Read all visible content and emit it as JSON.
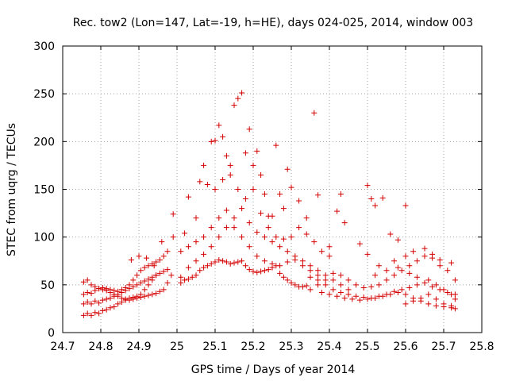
{
  "chart_data": {
    "type": "scatter",
    "title": "Rec. tow2 (Lon=147, Lat=-19, h=HE), days 024-025, 2014, window 003",
    "xlabel": "GPS time / Days of year 2014",
    "ylabel": "STEC from uqrg / TECUs",
    "xlim": [
      24.7,
      25.8
    ],
    "ylim": [
      0,
      300
    ],
    "x_ticks": [
      "24.7",
      "24.8",
      "24.9",
      "25",
      "25.1",
      "25.2",
      "25.3",
      "25.4",
      "25.5",
      "25.6",
      "25.7",
      "25.8"
    ],
    "y_ticks": [
      "0",
      "50",
      "100",
      "150",
      "200",
      "250",
      "300"
    ],
    "grid": true,
    "legend": "none",
    "marker": "plus",
    "color": "#d40000",
    "series": [
      {
        "values": [
          [
            24.755,
            18
          ],
          [
            24.765,
            20
          ],
          [
            24.775,
            18
          ],
          [
            24.785,
            21
          ],
          [
            24.795,
            20
          ],
          [
            24.805,
            23
          ],
          [
            24.815,
            24
          ],
          [
            24.825,
            26
          ],
          [
            24.835,
            27
          ],
          [
            24.845,
            30
          ],
          [
            24.855,
            32
          ],
          [
            24.865,
            34
          ],
          [
            24.875,
            36
          ],
          [
            24.885,
            37
          ],
          [
            24.895,
            38
          ],
          [
            24.905,
            37
          ],
          [
            24.915,
            38
          ],
          [
            24.925,
            39
          ],
          [
            24.935,
            40
          ],
          [
            24.945,
            41
          ],
          [
            24.955,
            43
          ],
          [
            24.965,
            45
          ],
          [
            24.975,
            52
          ],
          [
            24.985,
            60
          ],
          [
            24.755,
            30
          ],
          [
            24.765,
            32
          ],
          [
            24.775,
            30
          ],
          [
            24.785,
            33
          ],
          [
            24.795,
            31
          ],
          [
            24.805,
            34
          ],
          [
            24.815,
            35
          ],
          [
            24.825,
            36
          ],
          [
            24.835,
            38
          ],
          [
            24.845,
            40
          ],
          [
            24.855,
            42
          ],
          [
            24.865,
            44
          ],
          [
            24.875,
            46
          ],
          [
            24.885,
            48
          ],
          [
            24.895,
            50
          ],
          [
            24.905,
            52
          ],
          [
            24.915,
            54
          ],
          [
            24.925,
            56
          ],
          [
            24.935,
            58
          ],
          [
            24.945,
            60
          ],
          [
            24.955,
            62
          ],
          [
            24.965,
            64
          ],
          [
            24.975,
            66
          ],
          [
            24.755,
            40
          ],
          [
            24.765,
            42
          ],
          [
            24.775,
            41
          ],
          [
            24.785,
            44
          ],
          [
            24.795,
            46
          ],
          [
            24.805,
            47
          ],
          [
            24.815,
            46
          ],
          [
            24.825,
            45
          ],
          [
            24.835,
            44
          ],
          [
            24.845,
            43
          ],
          [
            24.855,
            45
          ],
          [
            24.865,
            47
          ],
          [
            24.875,
            50
          ],
          [
            24.885,
            55
          ],
          [
            24.895,
            60
          ],
          [
            24.905,
            65
          ],
          [
            24.915,
            68
          ],
          [
            24.925,
            70
          ],
          [
            24.935,
            72
          ],
          [
            24.945,
            74
          ],
          [
            24.955,
            76
          ],
          [
            24.965,
            80
          ],
          [
            24.975,
            85
          ],
          [
            24.755,
            53
          ],
          [
            24.765,
            55
          ],
          [
            24.775,
            50
          ],
          [
            24.785,
            48
          ],
          [
            24.795,
            46
          ],
          [
            24.805,
            45
          ],
          [
            24.815,
            44
          ],
          [
            24.825,
            42
          ],
          [
            24.835,
            40
          ],
          [
            24.845,
            38
          ],
          [
            24.855,
            36
          ],
          [
            24.865,
            35
          ],
          [
            24.875,
            34
          ],
          [
            24.885,
            35
          ],
          [
            24.895,
            36
          ],
          [
            24.905,
            40
          ],
          [
            24.915,
            45
          ],
          [
            24.925,
            50
          ],
          [
            24.935,
            55
          ],
          [
            24.945,
            60
          ],
          [
            24.88,
            76
          ],
          [
            24.9,
            80
          ],
          [
            24.92,
            78
          ],
          [
            24.94,
            70
          ],
          [
            24.96,
            95
          ],
          [
            24.99,
            124
          ],
          [
            24.99,
            100
          ],
          [
            25.01,
            52
          ],
          [
            25.02,
            55
          ],
          [
            25.03,
            56
          ],
          [
            25.04,
            58
          ],
          [
            25.05,
            60
          ],
          [
            25.06,
            65
          ],
          [
            25.07,
            68
          ],
          [
            25.08,
            70
          ],
          [
            25.09,
            72
          ],
          [
            25.1,
            74
          ],
          [
            25.11,
            76
          ],
          [
            25.12,
            75
          ],
          [
            25.13,
            74
          ],
          [
            25.14,
            72
          ],
          [
            25.15,
            73
          ],
          [
            25.16,
            74
          ],
          [
            25.17,
            75
          ],
          [
            25.18,
            70
          ],
          [
            25.19,
            66
          ],
          [
            25.2,
            64
          ],
          [
            25.21,
            63
          ],
          [
            25.22,
            64
          ],
          [
            25.23,
            65
          ],
          [
            25.24,
            66
          ],
          [
            25.25,
            68
          ],
          [
            25.26,
            70
          ],
          [
            25.27,
            62
          ],
          [
            25.28,
            58
          ],
          [
            25.29,
            55
          ],
          [
            25.3,
            52
          ],
          [
            25.31,
            50
          ],
          [
            25.32,
            48
          ],
          [
            25.33,
            48
          ],
          [
            25.34,
            49
          ],
          [
            25.01,
            58
          ],
          [
            25.03,
            68
          ],
          [
            25.05,
            75
          ],
          [
            25.07,
            82
          ],
          [
            25.09,
            90
          ],
          [
            25.11,
            100
          ],
          [
            25.13,
            110
          ],
          [
            25.15,
            120
          ],
          [
            25.17,
            130
          ],
          [
            25.19,
            115
          ],
          [
            25.21,
            105
          ],
          [
            25.23,
            100
          ],
          [
            25.25,
            95
          ],
          [
            25.27,
            90
          ],
          [
            25.29,
            85
          ],
          [
            25.31,
            80
          ],
          [
            25.33,
            75
          ],
          [
            25.35,
            70
          ],
          [
            25.37,
            65
          ],
          [
            25.39,
            60
          ],
          [
            25.41,
            55
          ],
          [
            25.43,
            50
          ],
          [
            25.45,
            45
          ],
          [
            25.02,
            104
          ],
          [
            25.03,
            142
          ],
          [
            25.05,
            120
          ],
          [
            25.06,
            158
          ],
          [
            25.07,
            175
          ],
          [
            25.08,
            155
          ],
          [
            25.09,
            200
          ],
          [
            25.1,
            201
          ],
          [
            25.11,
            217
          ],
          [
            25.12,
            205
          ],
          [
            25.13,
            185
          ],
          [
            25.14,
            165
          ],
          [
            25.15,
            238
          ],
          [
            25.16,
            245
          ],
          [
            25.17,
            251
          ],
          [
            25.18,
            188
          ],
          [
            25.19,
            213
          ],
          [
            25.2,
            175
          ],
          [
            25.21,
            190
          ],
          [
            25.22,
            165
          ],
          [
            25.23,
            145
          ],
          [
            25.24,
            122
          ],
          [
            25.25,
            122
          ],
          [
            25.26,
            196
          ],
          [
            25.27,
            145
          ],
          [
            25.28,
            130
          ],
          [
            25.29,
            171
          ],
          [
            25.3,
            152
          ],
          [
            25.32,
            138
          ],
          [
            25.34,
            120
          ],
          [
            25.36,
            230
          ],
          [
            25.37,
            144
          ],
          [
            25.4,
            90
          ],
          [
            25.42,
            127
          ],
          [
            25.43,
            145
          ],
          [
            25.44,
            115
          ],
          [
            25.1,
            150
          ],
          [
            25.12,
            160
          ],
          [
            25.14,
            175
          ],
          [
            25.16,
            150
          ],
          [
            25.18,
            140
          ],
          [
            25.2,
            150
          ],
          [
            25.22,
            125
          ],
          [
            25.24,
            110
          ],
          [
            25.26,
            100
          ],
          [
            25.28,
            98
          ],
          [
            25.3,
            100
          ],
          [
            25.32,
            110
          ],
          [
            25.34,
            103
          ],
          [
            25.36,
            95
          ],
          [
            25.38,
            85
          ],
          [
            25.4,
            80
          ],
          [
            25.01,
            85
          ],
          [
            25.03,
            90
          ],
          [
            25.05,
            95
          ],
          [
            25.07,
            100
          ],
          [
            25.09,
            110
          ],
          [
            25.11,
            120
          ],
          [
            25.13,
            128
          ],
          [
            25.15,
            110
          ],
          [
            25.17,
            100
          ],
          [
            25.19,
            90
          ],
          [
            25.21,
            80
          ],
          [
            25.23,
            75
          ],
          [
            25.25,
            72
          ],
          [
            25.27,
            70
          ],
          [
            25.29,
            74
          ],
          [
            25.31,
            76
          ],
          [
            25.33,
            70
          ],
          [
            25.35,
            65
          ],
          [
            25.37,
            60
          ],
          [
            25.35,
            45
          ],
          [
            25.37,
            50
          ],
          [
            25.39,
            55
          ],
          [
            25.41,
            62
          ],
          [
            25.43,
            60
          ],
          [
            25.45,
            55
          ],
          [
            25.47,
            50
          ],
          [
            25.49,
            47
          ],
          [
            25.51,
            48
          ],
          [
            25.53,
            50
          ],
          [
            25.55,
            55
          ],
          [
            25.57,
            60
          ],
          [
            25.59,
            65
          ],
          [
            25.61,
            70
          ],
          [
            25.63,
            75
          ],
          [
            25.65,
            80
          ],
          [
            25.67,
            78
          ],
          [
            25.69,
            70
          ],
          [
            25.71,
            65
          ],
          [
            25.73,
            55
          ],
          [
            25.35,
            58
          ],
          [
            25.37,
            55
          ],
          [
            25.39,
            50
          ],
          [
            25.41,
            45
          ],
          [
            25.43,
            42
          ],
          [
            25.45,
            40
          ],
          [
            25.47,
            38
          ],
          [
            25.49,
            37
          ],
          [
            25.51,
            36
          ],
          [
            25.53,
            38
          ],
          [
            25.55,
            40
          ],
          [
            25.57,
            43
          ],
          [
            25.59,
            45
          ],
          [
            25.61,
            47
          ],
          [
            25.63,
            50
          ],
          [
            25.65,
            52
          ],
          [
            25.67,
            48
          ],
          [
            25.69,
            45
          ],
          [
            25.71,
            42
          ],
          [
            25.73,
            40
          ],
          [
            25.38,
            42
          ],
          [
            25.4,
            40
          ],
          [
            25.42,
            38
          ],
          [
            25.44,
            36
          ],
          [
            25.46,
            35
          ],
          [
            25.48,
            34
          ],
          [
            25.5,
            35
          ],
          [
            25.52,
            36
          ],
          [
            25.54,
            38
          ],
          [
            25.56,
            40
          ],
          [
            25.58,
            42
          ],
          [
            25.6,
            40
          ],
          [
            25.62,
            36
          ],
          [
            25.64,
            33
          ],
          [
            25.66,
            30
          ],
          [
            25.68,
            28
          ],
          [
            25.7,
            27
          ],
          [
            25.72,
            26
          ],
          [
            25.73,
            25
          ],
          [
            25.48,
            93
          ],
          [
            25.5,
            154
          ],
          [
            25.51,
            140
          ],
          [
            25.52,
            133
          ],
          [
            25.54,
            141
          ],
          [
            25.56,
            103
          ],
          [
            25.58,
            97
          ],
          [
            25.6,
            133
          ],
          [
            25.5,
            82
          ],
          [
            25.53,
            70
          ],
          [
            25.57,
            75
          ],
          [
            25.6,
            80
          ],
          [
            25.62,
            85
          ],
          [
            25.65,
            88
          ],
          [
            25.67,
            82
          ],
          [
            25.69,
            76
          ],
          [
            25.72,
            73
          ],
          [
            25.52,
            60
          ],
          [
            25.55,
            65
          ],
          [
            25.58,
            68
          ],
          [
            25.61,
            62
          ],
          [
            25.63,
            58
          ],
          [
            25.66,
            55
          ],
          [
            25.68,
            50
          ],
          [
            25.7,
            45
          ],
          [
            25.72,
            40
          ],
          [
            25.73,
            35
          ],
          [
            25.6,
            30
          ],
          [
            25.62,
            33
          ],
          [
            25.64,
            36
          ],
          [
            25.66,
            40
          ],
          [
            25.68,
            35
          ],
          [
            25.7,
            30
          ],
          [
            25.72,
            28
          ]
        ]
      }
    ]
  }
}
